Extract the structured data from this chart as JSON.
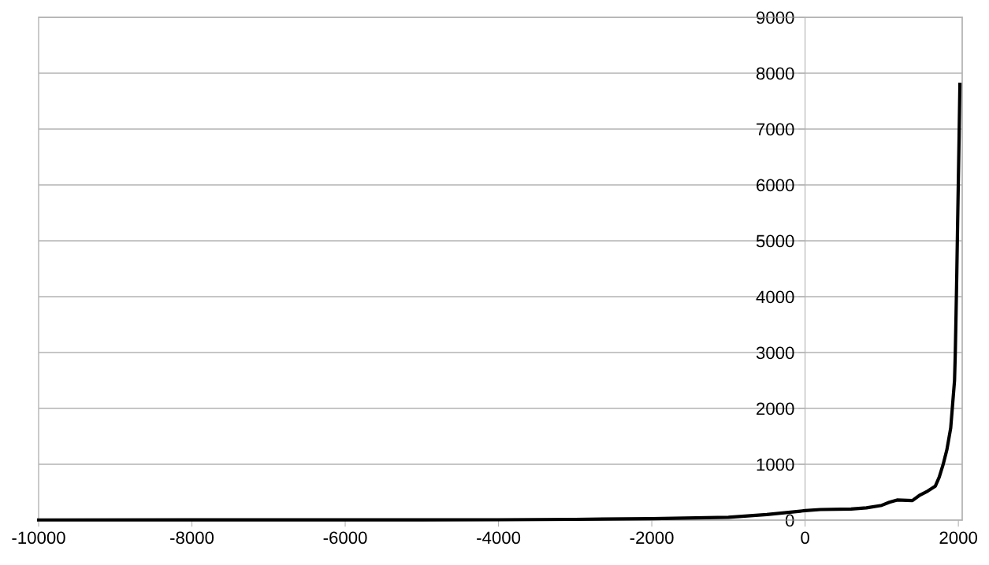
{
  "chart_data": {
    "type": "line",
    "x": [
      -10000,
      -8000,
      -6000,
      -5000,
      -4000,
      -3000,
      -2000,
      -1000,
      -500,
      1,
      200,
      600,
      800,
      1000,
      1100,
      1200,
      1400,
      1500,
      1600,
      1700,
      1750,
      1800,
      1850,
      1900,
      1950,
      1960,
      1970,
      1980,
      1990,
      2000,
      2010,
      2020
    ],
    "series": [
      {
        "color": "#000000",
        "values": [
          4,
          5,
          5,
          5,
          7,
          14,
          27,
          50,
          100,
          170,
          190,
          200,
          220,
          265,
          320,
          360,
          350,
          450,
          520,
          610,
          770,
          990,
          1260,
          1650,
          2500,
          3000,
          3700,
          4450,
          5300,
          6100,
          6900,
          7800
        ]
      }
    ],
    "xlim": [
      -10000,
      2050
    ],
    "xticks": [
      -10000,
      -8000,
      -6000,
      -4000,
      -2000,
      0,
      2000
    ],
    "ylim": [
      0,
      9000
    ],
    "yticks": [
      0,
      1000,
      2000,
      3000,
      4000,
      5000,
      6000,
      7000,
      8000,
      9000
    ],
    "grid": "y",
    "legend": false,
    "marker": "none",
    "line_style": "solid"
  }
}
